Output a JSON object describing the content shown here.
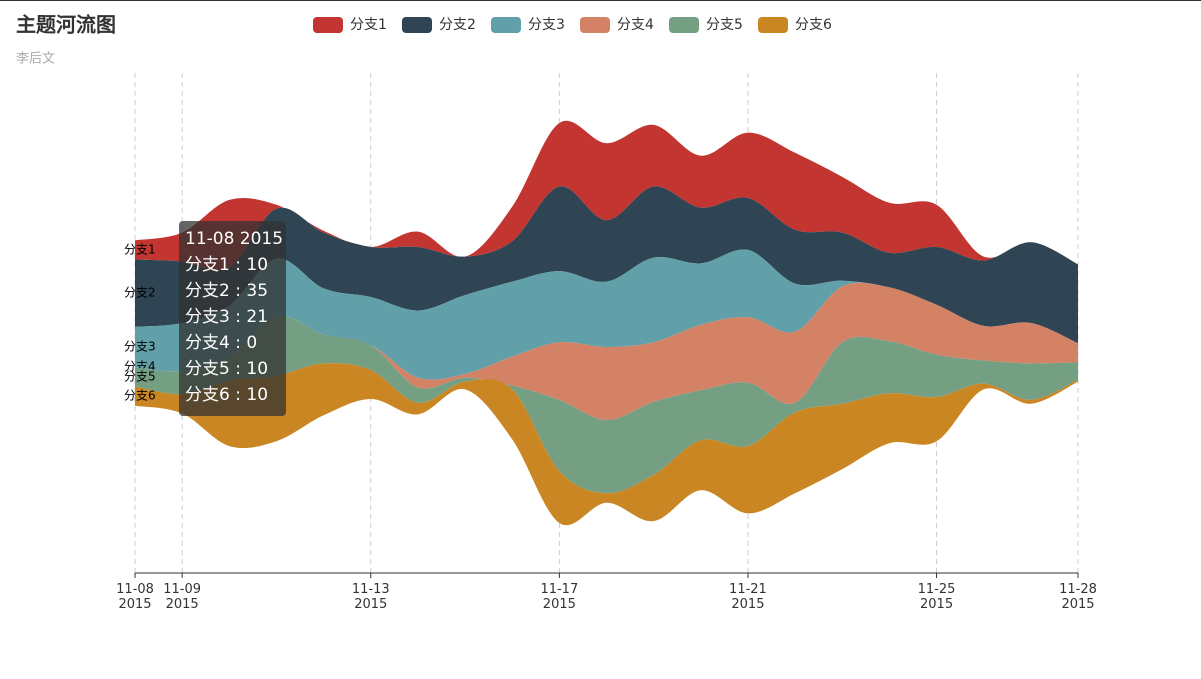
{
  "chart_data": {
    "type": "themeRiver",
    "title": "主题河流图",
    "subtitle": "李后文",
    "x": [
      "2015-11-08",
      "2015-11-09",
      "2015-11-10",
      "2015-11-11",
      "2015-11-12",
      "2015-11-13",
      "2015-11-14",
      "2015-11-15",
      "2015-11-16",
      "2015-11-17",
      "2015-11-18",
      "2015-11-19",
      "2015-11-20",
      "2015-11-21",
      "2015-11-22",
      "2015-11-23",
      "2015-11-24",
      "2015-11-25",
      "2015-11-26",
      "2015-11-27",
      "2015-11-28"
    ],
    "xlim": [
      "2015-11-08",
      "2015-11-28"
    ],
    "xticks": [
      {
        "value": "2015-11-08",
        "label": [
          "11-08",
          "2015"
        ]
      },
      {
        "value": "2015-11-09",
        "label": [
          "11-09",
          "2015"
        ]
      },
      {
        "value": "2015-11-13",
        "label": [
          "11-13",
          "2015"
        ]
      },
      {
        "value": "2015-11-17",
        "label": [
          "11-17",
          "2015"
        ]
      },
      {
        "value": "2015-11-21",
        "label": [
          "11-21",
          "2015"
        ]
      },
      {
        "value": "2015-11-25",
        "label": [
          "11-25",
          "2015"
        ]
      },
      {
        "value": "2015-11-28",
        "label": [
          "11-28",
          "2015"
        ]
      }
    ],
    "grid": true,
    "series": [
      {
        "name": "分支1",
        "color": "#c23531",
        "values": [
          10,
          15,
          35,
          2,
          1,
          0,
          8,
          0,
          18,
          33,
          40,
          32,
          27,
          34,
          40,
          29,
          26,
          22,
          2,
          0,
          0
        ]
      },
      {
        "name": "分支2",
        "color": "#2f4554",
        "values": [
          35,
          32,
          20,
          26,
          29,
          26,
          33,
          20,
          21,
          44,
          32,
          37,
          29,
          27,
          28,
          25,
          18,
          30,
          34,
          42,
          41
        ]
      },
      {
        "name": "分支3",
        "color": "#61a0a8",
        "values": [
          21,
          25,
          27,
          30,
          24,
          25,
          35,
          41,
          39,
          37,
          34,
          44,
          32,
          35,
          25,
          3,
          0,
          0,
          0,
          0,
          0
        ]
      },
      {
        "name": "分支4",
        "color": "#d48265",
        "values": [
          0,
          0,
          0,
          0,
          0,
          0,
          5,
          2,
          15,
          30,
          38,
          31,
          34,
          34,
          37,
          29,
          28,
          26,
          18,
          21,
          10
        ]
      },
      {
        "name": "分支5",
        "color": "#749f83",
        "values": [
          10,
          12,
          12,
          31,
          15,
          13,
          8,
          2,
          2,
          37,
          38,
          38,
          26,
          33,
          5,
          32,
          27,
          22,
          12,
          19,
          9
        ]
      },
      {
        "name": "分支6",
        "color": "#ca8622",
        "values": [
          10,
          10,
          34,
          34,
          27,
          15,
          6,
          4,
          26,
          27,
          5,
          24,
          26,
          35,
          42,
          34,
          26,
          23,
          3,
          2,
          1
        ]
      }
    ],
    "tooltip": {
      "title": "11-08 2015",
      "separator": " : "
    }
  }
}
